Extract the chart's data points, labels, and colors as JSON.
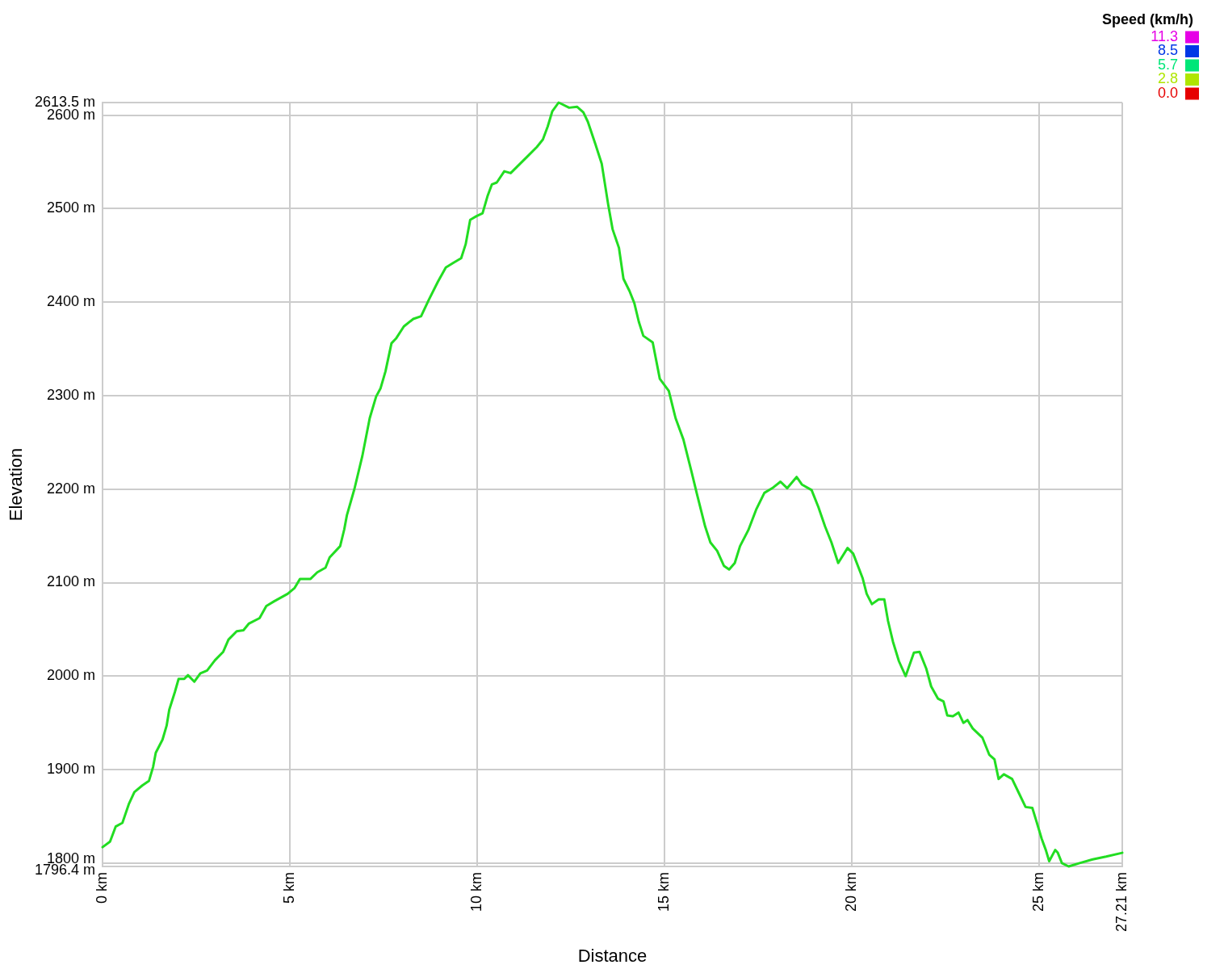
{
  "chart_data": {
    "type": "line",
    "xlabel": "Distance",
    "ylabel": "Elevation",
    "x": [
      0,
      0.2,
      0.35,
      0.53,
      0.7,
      0.85,
      1.06,
      1.24,
      1.35,
      1.42,
      1.6,
      1.71,
      1.78,
      1.93,
      2.03,
      2.18,
      2.28,
      2.45,
      2.61,
      2.79,
      3,
      3.22,
      3.36,
      3.58,
      3.76,
      3.9,
      4.19,
      4.37,
      4.58,
      4.94,
      5.12,
      5.27,
      5.55,
      5.73,
      5.95,
      6.06,
      6.34,
      6.45,
      6.52,
      6.72,
      6.93,
      7.13,
      7.3,
      7.42,
      7.55,
      7.71,
      7.83,
      8.04,
      8.29,
      8.5,
      8.7,
      8.95,
      9.16,
      9.36,
      9.57,
      9.69,
      9.81,
      9.98,
      10.14,
      10.27,
      10.39,
      10.52,
      10.72,
      10.89,
      11.09,
      11.34,
      11.59,
      11.75,
      11.88,
      12,
      12.17,
      12.25,
      12.45,
      12.66,
      12.83,
      12.95,
      13.16,
      13.32,
      13.49,
      13.61,
      13.78,
      13.9,
      14.06,
      14.19,
      14.31,
      14.43,
      14.68,
      14.87,
      15.11,
      15.29,
      15.5,
      15.72,
      15.86,
      16.08,
      16.22,
      16.4,
      16.58,
      16.72,
      16.87,
      17.01,
      17.23,
      17.44,
      17.66,
      17.87,
      18.09,
      18.27,
      18.52,
      18.66,
      18.92,
      19.1,
      19.28,
      19.45,
      19.63,
      19.88,
      20.03,
      20.28,
      20.39,
      20.53,
      20.71,
      20.86,
      20.96,
      21.09,
      21.25,
      21.43,
      21.65,
      21.8,
      21.98,
      22.11,
      22.29,
      22.44,
      22.54,
      22.69,
      22.84,
      22.97,
      23.08,
      23.22,
      23.48,
      23.66,
      23.8,
      23.91,
      24.05,
      24.27,
      24.45,
      24.63,
      24.81,
      24.91,
      25.06,
      25.17,
      25.26,
      25.42,
      25.49,
      25.6,
      25.78,
      26.07,
      26.42,
      26.78,
      27.21
    ],
    "values": [
      1817,
      1823,
      1839,
      1843,
      1863,
      1876,
      1883,
      1888,
      1903,
      1918,
      1932,
      1947,
      1964,
      1983,
      1997,
      1997,
      2001,
      1994,
      2003,
      2006,
      2017,
      2026,
      2039,
      2048,
      2049,
      2056,
      2062,
      2075,
      2080,
      2088,
      2094,
      2104,
      2104,
      2111,
      2116,
      2127,
      2139,
      2157,
      2172,
      2200,
      2235,
      2276,
      2299,
      2308,
      2326,
      2356,
      2361,
      2374,
      2382,
      2385,
      2402,
      2422,
      2437,
      2442,
      2447,
      2462,
      2488,
      2492,
      2495,
      2513,
      2526,
      2528,
      2540,
      2538,
      2546,
      2556,
      2566,
      2574,
      2588,
      2604,
      2613.5,
      2612,
      2608,
      2609,
      2603,
      2593,
      2568,
      2548,
      2505,
      2478,
      2458,
      2425,
      2412,
      2399,
      2379,
      2364,
      2357,
      2318,
      2305,
      2276,
      2253,
      2218,
      2195,
      2160,
      2143,
      2134,
      2118,
      2114,
      2121,
      2139,
      2156,
      2178,
      2196,
      2201,
      2208,
      2201,
      2213,
      2205,
      2199,
      2181,
      2160,
      2143,
      2121,
      2137,
      2131,
      2105,
      2088,
      2077,
      2082,
      2082,
      2059,
      2037,
      2016,
      2000,
      2025,
      2026,
      2008,
      1989,
      1976,
      1973,
      1958,
      1957,
      1961,
      1950,
      1953,
      1944,
      1934,
      1916,
      1911,
      1890,
      1895,
      1890,
      1875,
      1860,
      1859,
      1846,
      1826,
      1814,
      1802,
      1814,
      1811,
      1800,
      1796.4,
      1800,
      1804,
      1807,
      1811
    ],
    "color": "#22dd22",
    "xlim": [
      0,
      27.21
    ],
    "xticks": [
      {
        "value": 0,
        "label": "0 km"
      },
      {
        "value": 5,
        "label": "5 km"
      },
      {
        "value": 10,
        "label": "10 km"
      },
      {
        "value": 15,
        "label": "15 km"
      },
      {
        "value": 20,
        "label": "20 km"
      },
      {
        "value": 25,
        "label": "25 km"
      },
      {
        "value": 27.21,
        "label": "27.21 km"
      }
    ],
    "ylim": [
      1796.4,
      2613.5
    ],
    "yticks": [
      {
        "value": 1796.4,
        "label": "1796.4 m"
      },
      {
        "value": 1800,
        "label": "1800 m"
      },
      {
        "value": 1900,
        "label": "1900 m"
      },
      {
        "value": 2000,
        "label": "2000 m"
      },
      {
        "value": 2100,
        "label": "2100 m"
      },
      {
        "value": 2200,
        "label": "2200 m"
      },
      {
        "value": 2300,
        "label": "2300 m"
      },
      {
        "value": 2400,
        "label": "2400 m"
      },
      {
        "value": 2500,
        "label": "2500 m"
      },
      {
        "value": 2600,
        "label": "2600 m"
      },
      {
        "value": 2613.5,
        "label": "2613.5 m"
      }
    ],
    "grid": true,
    "marker": "none",
    "clabel": "Speed (km/h)",
    "cticks": [
      {
        "value": 0,
        "label": "0.0"
      },
      2.8,
      5.7,
      8.5,
      11.3
    ]
  }
}
